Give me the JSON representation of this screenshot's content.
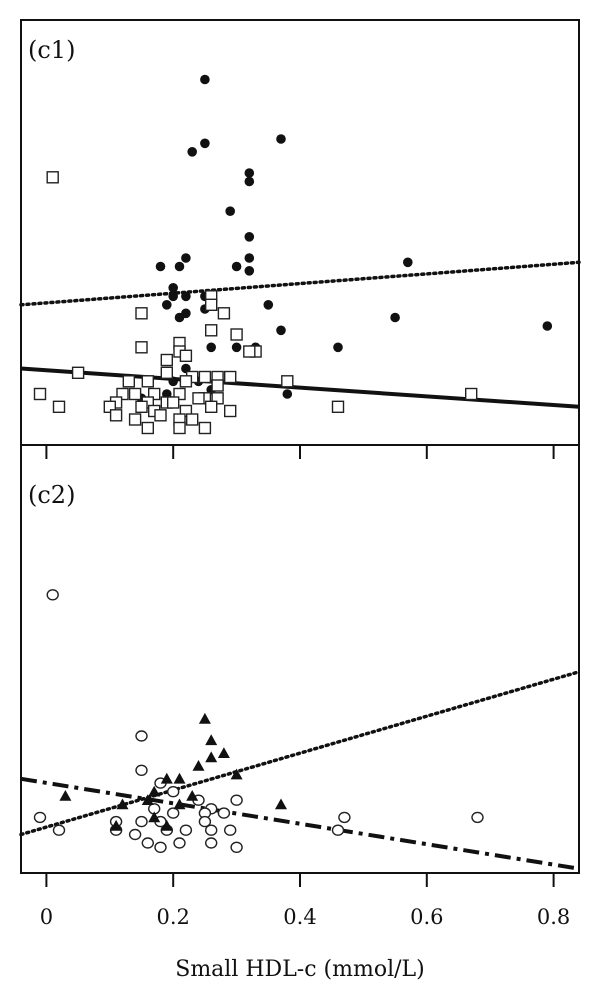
{
  "chart_data": {
    "type": "scatter",
    "xlabel": "Small HDL-c (mmol/L)",
    "xlim": [
      -0.04,
      0.84
    ],
    "xticks": [
      0,
      0.2,
      0.4,
      0.6,
      0.8
    ],
    "xtick_labels": [
      "0",
      "0.2",
      "0.4",
      "0.6",
      "0.8"
    ],
    "grid": false,
    "panels": [
      {
        "label": "(c1)",
        "ylim": [
          0,
          1
        ],
        "series": [
          {
            "marker": "filled-circle",
            "points": [
              [
                0.25,
                0.86
              ],
              [
                0.25,
                0.71
              ],
              [
                0.23,
                0.69
              ],
              [
                0.37,
                0.72
              ],
              [
                0.32,
                0.64
              ],
              [
                0.32,
                0.62
              ],
              [
                0.29,
                0.55
              ],
              [
                0.32,
                0.49
              ],
              [
                0.32,
                0.44
              ],
              [
                0.3,
                0.42
              ],
              [
                0.22,
                0.44
              ],
              [
                0.18,
                0.42
              ],
              [
                0.21,
                0.42
              ],
              [
                0.32,
                0.41
              ],
              [
                0.57,
                0.43
              ],
              [
                0.2,
                0.37
              ],
              [
                0.2,
                0.35
              ],
              [
                0.22,
                0.35
              ],
              [
                0.25,
                0.35
              ],
              [
                0.26,
                0.35
              ],
              [
                0.35,
                0.33
              ],
              [
                0.19,
                0.33
              ],
              [
                0.22,
                0.31
              ],
              [
                0.25,
                0.32
              ],
              [
                0.21,
                0.3
              ],
              [
                0.37,
                0.27
              ],
              [
                0.55,
                0.3
              ],
              [
                0.79,
                0.28
              ],
              [
                0.26,
                0.23
              ],
              [
                0.3,
                0.23
              ],
              [
                0.33,
                0.23
              ],
              [
                0.46,
                0.23
              ],
              [
                0.22,
                0.18
              ],
              [
                0.2,
                0.15
              ],
              [
                0.24,
                0.15
              ],
              [
                0.26,
                0.13
              ],
              [
                0.38,
                0.12
              ],
              [
                0.11,
                0.1
              ],
              [
                0.15,
                0.11
              ],
              [
                0.19,
                0.12
              ]
            ]
          },
          {
            "marker": "open-square",
            "points": [
              [
                0.01,
                0.63
              ],
              [
                0.26,
                0.35
              ],
              [
                0.26,
                0.33
              ],
              [
                0.28,
                0.31
              ],
              [
                0.15,
                0.31
              ],
              [
                0.3,
                0.26
              ],
              [
                0.26,
                0.27
              ],
              [
                0.21,
                0.24
              ],
              [
                0.21,
                0.22
              ],
              [
                0.15,
                0.23
              ],
              [
                0.19,
                0.2
              ],
              [
                0.22,
                0.21
              ],
              [
                0.33,
                0.22
              ],
              [
                0.32,
                0.22
              ],
              [
                0.05,
                0.17
              ],
              [
                0.19,
                0.17
              ],
              [
                0.23,
                0.16
              ],
              [
                0.25,
                0.16
              ],
              [
                0.27,
                0.16
              ],
              [
                0.29,
                0.16
              ],
              [
                0.13,
                0.15
              ],
              [
                0.16,
                0.15
              ],
              [
                0.22,
                0.15
              ],
              [
                0.27,
                0.14
              ],
              [
                0.38,
                0.15
              ],
              [
                -0.01,
                0.12
              ],
              [
                0.12,
                0.12
              ],
              [
                0.14,
                0.12
              ],
              [
                0.17,
                0.12
              ],
              [
                0.21,
                0.12
              ],
              [
                0.25,
                0.11
              ],
              [
                0.27,
                0.11
              ],
              [
                0.67,
                0.12
              ],
              [
                0.11,
                0.1
              ],
              [
                0.16,
                0.1
              ],
              [
                0.19,
                0.1
              ],
              [
                0.2,
                0.1
              ],
              [
                0.24,
                0.11
              ],
              [
                0.02,
                0.09
              ],
              [
                0.1,
                0.09
              ],
              [
                0.15,
                0.09
              ],
              [
                0.17,
                0.08
              ],
              [
                0.22,
                0.08
              ],
              [
                0.26,
                0.09
              ],
              [
                0.46,
                0.09
              ],
              [
                0.11,
                0.07
              ],
              [
                0.14,
                0.06
              ],
              [
                0.18,
                0.07
              ],
              [
                0.21,
                0.06
              ],
              [
                0.23,
                0.06
              ],
              [
                0.29,
                0.08
              ],
              [
                0.16,
                0.04
              ],
              [
                0.21,
                0.04
              ],
              [
                0.25,
                0.04
              ]
            ]
          }
        ],
        "trend_lines": [
          {
            "style": "dotted",
            "x": [
              -0.04,
              0.84
            ],
            "y": [
              0.33,
              0.43
            ]
          },
          {
            "style": "solid",
            "x": [
              -0.04,
              0.84
            ],
            "y": [
              0.18,
              0.09
            ]
          }
        ]
      },
      {
        "label": "(c2)",
        "ylim": [
          0,
          1
        ],
        "series": [
          {
            "marker": "open-circle",
            "points": [
              [
                0.01,
                0.65
              ],
              [
                0.15,
                0.32
              ],
              [
                0.15,
                0.24
              ],
              [
                0.18,
                0.21
              ],
              [
                0.2,
                0.19
              ],
              [
                0.24,
                0.17
              ],
              [
                0.3,
                0.17
              ],
              [
                0.17,
                0.15
              ],
              [
                0.26,
                0.15
              ],
              [
                0.2,
                0.14
              ],
              [
                0.25,
                0.14
              ],
              [
                0.28,
                0.14
              ],
              [
                -0.01,
                0.13
              ],
              [
                0.11,
                0.12
              ],
              [
                0.15,
                0.12
              ],
              [
                0.18,
                0.12
              ],
              [
                0.25,
                0.12
              ],
              [
                0.47,
                0.13
              ],
              [
                0.68,
                0.13
              ],
              [
                0.02,
                0.1
              ],
              [
                0.11,
                0.1
              ],
              [
                0.14,
                0.09
              ],
              [
                0.19,
                0.1
              ],
              [
                0.22,
                0.1
              ],
              [
                0.26,
                0.1
              ],
              [
                0.29,
                0.1
              ],
              [
                0.46,
                0.1
              ],
              [
                0.16,
                0.07
              ],
              [
                0.18,
                0.06
              ],
              [
                0.21,
                0.07
              ],
              [
                0.26,
                0.07
              ],
              [
                0.3,
                0.06
              ]
            ]
          },
          {
            "marker": "filled-triangle",
            "points": [
              [
                0.25,
                0.36
              ],
              [
                0.26,
                0.31
              ],
              [
                0.28,
                0.28
              ],
              [
                0.26,
                0.27
              ],
              [
                0.24,
                0.25
              ],
              [
                0.3,
                0.23
              ],
              [
                0.19,
                0.22
              ],
              [
                0.21,
                0.22
              ],
              [
                0.17,
                0.19
              ],
              [
                0.03,
                0.18
              ],
              [
                0.23,
                0.18
              ],
              [
                0.16,
                0.17
              ],
              [
                0.12,
                0.16
              ],
              [
                0.21,
                0.16
              ],
              [
                0.37,
                0.16
              ],
              [
                0.17,
                0.13
              ],
              [
                0.19,
                0.11
              ],
              [
                0.11,
                0.11
              ]
            ]
          }
        ],
        "trend_lines": [
          {
            "style": "dotted",
            "x": [
              -0.04,
              0.84
            ],
            "y": [
              0.09,
              0.47
            ]
          },
          {
            "style": "dashed",
            "x": [
              -0.04,
              0.84
            ],
            "y": [
              0.22,
              0.01
            ]
          }
        ]
      }
    ]
  }
}
